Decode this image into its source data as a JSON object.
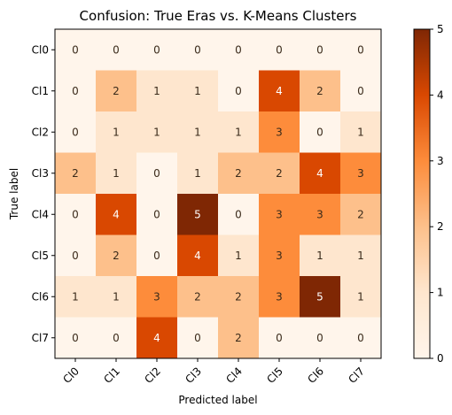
{
  "chart_data": {
    "type": "heatmap",
    "title": "Confusion: True Eras vs. K-Means Clusters",
    "xlabel": "Predicted label",
    "ylabel": "True label",
    "x_categories": [
      "Cl0",
      "Cl1",
      "Cl2",
      "Cl3",
      "Cl4",
      "Cl5",
      "Cl6",
      "Cl7"
    ],
    "y_categories": [
      "Cl0",
      "Cl1",
      "Cl2",
      "Cl3",
      "Cl4",
      "Cl5",
      "Cl6",
      "Cl7"
    ],
    "values": [
      [
        0,
        0,
        0,
        0,
        0,
        0,
        0,
        0
      ],
      [
        0,
        2,
        1,
        1,
        0,
        4,
        2,
        0
      ],
      [
        0,
        1,
        1,
        1,
        1,
        3,
        0,
        1
      ],
      [
        2,
        1,
        0,
        1,
        2,
        2,
        4,
        3
      ],
      [
        0,
        4,
        0,
        5,
        0,
        3,
        3,
        2
      ],
      [
        0,
        2,
        0,
        4,
        1,
        3,
        1,
        1
      ],
      [
        1,
        1,
        3,
        2,
        2,
        3,
        5,
        1
      ],
      [
        0,
        0,
        4,
        0,
        2,
        0,
        0,
        0
      ]
    ],
    "colorbar": {
      "range": [
        0,
        5
      ],
      "ticks": [
        "0",
        "1",
        "2",
        "3",
        "4",
        "5"
      ],
      "colormap": "Oranges",
      "colors": [
        "#fff5eb",
        "#fdd1a5",
        "#fd9243",
        "#df4f05",
        "#7f2704"
      ]
    }
  }
}
